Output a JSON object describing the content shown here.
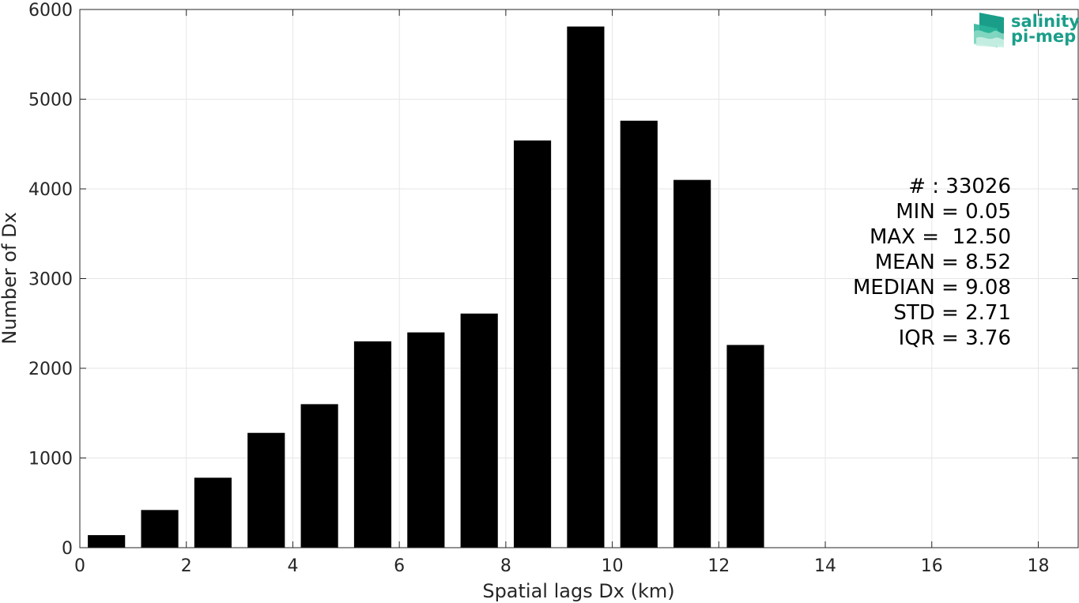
{
  "chart_data": {
    "type": "bar",
    "x": [
      0.5,
      1.5,
      2.5,
      3.5,
      4.5,
      5.5,
      6.5,
      7.5,
      8.5,
      9.5,
      10.5,
      11.5,
      12.5
    ],
    "values": [
      140,
      420,
      780,
      1280,
      1600,
      2300,
      2400,
      2610,
      4540,
      5810,
      4760,
      4100,
      2260
    ],
    "xlabel": "Spatial lags Dx (km)",
    "ylabel": "Number of Dx",
    "xlim": [
      0,
      18.75
    ],
    "ylim": [
      0,
      6000
    ],
    "xticks": [
      0,
      2,
      4,
      6,
      8,
      10,
      12,
      14,
      16,
      18
    ],
    "yticks": [
      0,
      1000,
      2000,
      3000,
      4000,
      5000,
      6000
    ],
    "grid": true,
    "bar_color": "#000000",
    "stats": [
      "# : 33026",
      "MIN = 0.05",
      "MAX =  12.50",
      "MEAN = 8.52",
      "MEDIAN = 9.08",
      "STD = 2.71",
      "IQR = 3.76"
    ]
  },
  "logo": {
    "line1": "salinity",
    "line2": "pi-mep",
    "color": "#1a9e8a"
  }
}
